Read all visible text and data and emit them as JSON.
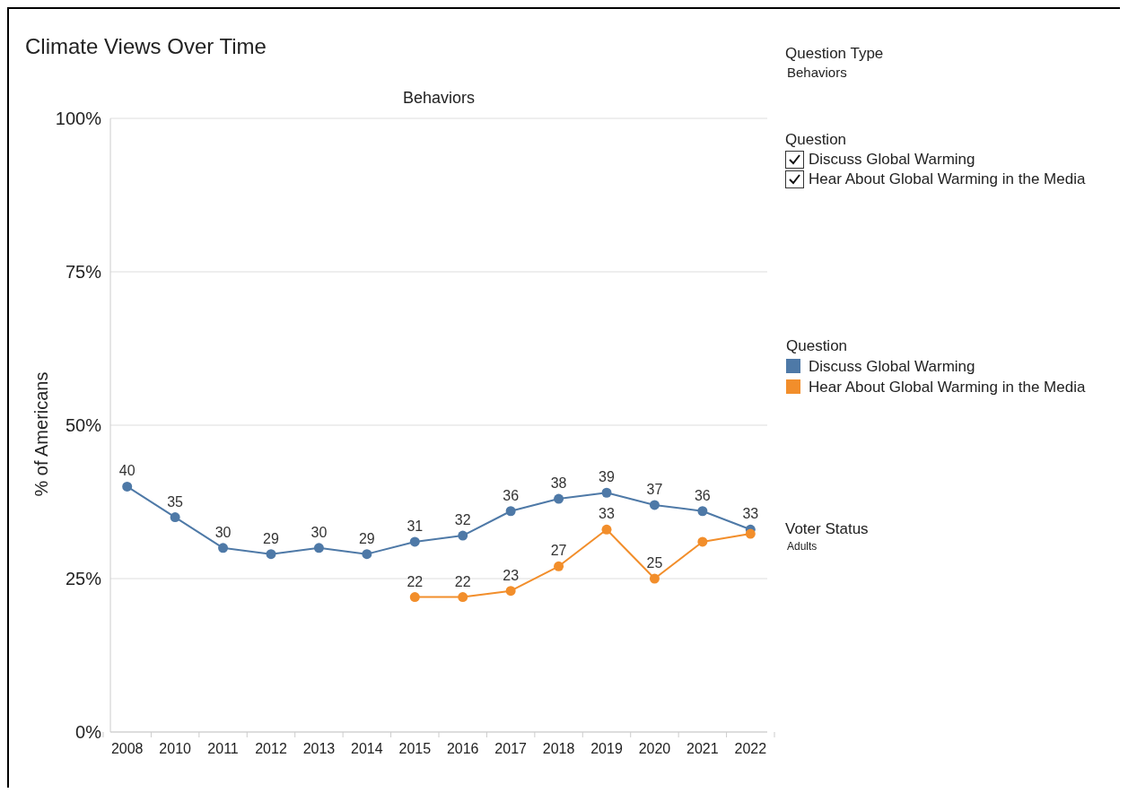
{
  "chart_data": {
    "type": "line",
    "title": "Climate Views Over Time",
    "subtitle": "Behaviors",
    "ylabel": "% of Americans",
    "categories": [
      "2008",
      "2010",
      "2011",
      "2012",
      "2013",
      "2014",
      "2015",
      "2016",
      "2017",
      "2018",
      "2019",
      "2020",
      "2021",
      "2022"
    ],
    "series": [
      {
        "name": "Discuss Global Warming",
        "color": "#4e79a7",
        "values": [
          40,
          35,
          30,
          29,
          30,
          29,
          31,
          32,
          36,
          38,
          39,
          37,
          36,
          33
        ],
        "value_labels": [
          "40",
          "35",
          "30",
          "29",
          "30",
          "29",
          "31",
          "32",
          "36",
          "38",
          "39",
          "37",
          "36",
          "33"
        ]
      },
      {
        "name": "Hear About Global Warming in the Media",
        "color": "#f28e2b",
        "values": [
          null,
          null,
          null,
          null,
          null,
          null,
          22,
          22,
          23,
          27,
          33,
          25,
          31,
          32.3
        ],
        "value_labels": [
          null,
          null,
          null,
          null,
          null,
          null,
          "22",
          "22",
          "23",
          "27",
          "33",
          "25",
          null,
          null
        ]
      }
    ],
    "ylim": [
      0,
      100
    ],
    "yticks": [
      {
        "value": 0,
        "label": "0%"
      },
      {
        "value": 25,
        "label": "25%"
      },
      {
        "value": 50,
        "label": "50%"
      },
      {
        "value": 75,
        "label": "75%"
      },
      {
        "value": 100,
        "label": "100%"
      }
    ],
    "grid": "y",
    "legend": "right",
    "legend_title": "Question",
    "marker": "circle",
    "line_style": "solid",
    "annotations": [
      "Question Type",
      "Behaviors",
      "Question",
      "Discuss Global Warming",
      "Hear About Global Warming in the Media",
      "Voter Status",
      "Adults"
    ]
  }
}
